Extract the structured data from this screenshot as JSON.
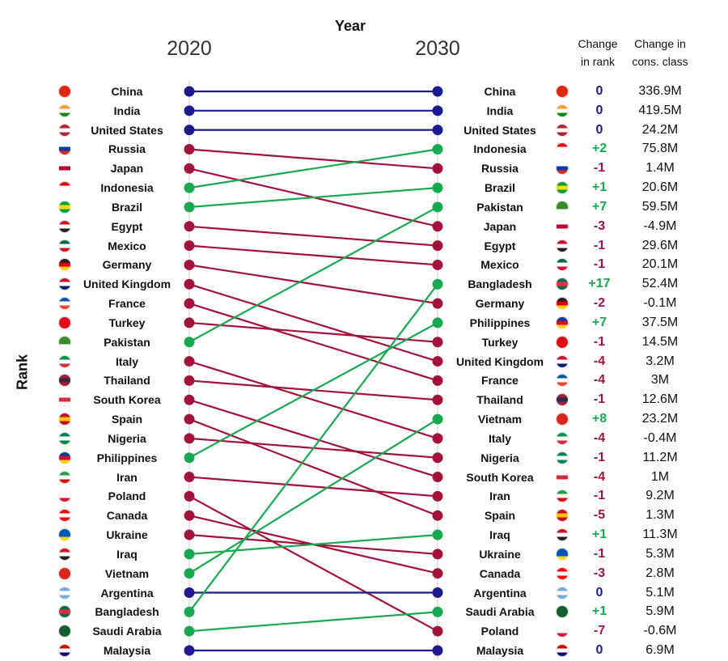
{
  "chart_data": {
    "type": "slope",
    "title": "Year",
    "ylabel": "Rank",
    "x_categories": [
      "2020",
      "2030"
    ],
    "column_headers": {
      "change_rank": [
        "Change",
        "in rank"
      ],
      "change_cons": [
        "Change in",
        "cons. class"
      ]
    },
    "colors": {
      "unchanged": "#1b1b8f",
      "down": "#a3123a",
      "up": "#18a84f",
      "axis": "#e6e6e6"
    },
    "rank_2020": [
      "China",
      "India",
      "United States",
      "Russia",
      "Japan",
      "Indonesia",
      "Brazil",
      "Egypt",
      "Mexico",
      "Germany",
      "United Kingdom",
      "France",
      "Turkey",
      "Pakistan",
      "Italy",
      "Thailand",
      "South Korea",
      "Spain",
      "Nigeria",
      "Philippines",
      "Iran",
      "Poland",
      "Canada",
      "Ukraine",
      "Iraq",
      "Vietnam",
      "Argentina",
      "Bangladesh",
      "Saudi Arabia",
      "Malaysia"
    ],
    "rank_2030": [
      {
        "country": "China",
        "change_rank": "0",
        "change_cons": "336.9M"
      },
      {
        "country": "India",
        "change_rank": "0",
        "change_cons": "419.5M"
      },
      {
        "country": "United States",
        "change_rank": "0",
        "change_cons": "24.2M"
      },
      {
        "country": "Indonesia",
        "change_rank": "+2",
        "change_cons": "75.8M"
      },
      {
        "country": "Russia",
        "change_rank": "-1",
        "change_cons": "1.4M"
      },
      {
        "country": "Brazil",
        "change_rank": "+1",
        "change_cons": "20.6M"
      },
      {
        "country": "Pakistan",
        "change_rank": "+7",
        "change_cons": "59.5M"
      },
      {
        "country": "Japan",
        "change_rank": "-3",
        "change_cons": "-4.9M"
      },
      {
        "country": "Egypt",
        "change_rank": "-1",
        "change_cons": "29.6M"
      },
      {
        "country": "Mexico",
        "change_rank": "-1",
        "change_cons": "20.1M"
      },
      {
        "country": "Bangladesh",
        "change_rank": "+17",
        "change_cons": "52.4M"
      },
      {
        "country": "Germany",
        "change_rank": "-2",
        "change_cons": "-0.1M"
      },
      {
        "country": "Philippines",
        "change_rank": "+7",
        "change_cons": "37.5M"
      },
      {
        "country": "Turkey",
        "change_rank": "-1",
        "change_cons": "14.5M"
      },
      {
        "country": "United Kingdom",
        "change_rank": "-4",
        "change_cons": "3.2M"
      },
      {
        "country": "France",
        "change_rank": "-4",
        "change_cons": "3M"
      },
      {
        "country": "Thailand",
        "change_rank": "-1",
        "change_cons": "12.6M"
      },
      {
        "country": "Vietnam",
        "change_rank": "+8",
        "change_cons": "23.2M"
      },
      {
        "country": "Italy",
        "change_rank": "-4",
        "change_cons": "-0.4M"
      },
      {
        "country": "Nigeria",
        "change_rank": "-1",
        "change_cons": "11.2M"
      },
      {
        "country": "South Korea",
        "change_rank": "-4",
        "change_cons": "1M"
      },
      {
        "country": "Iran",
        "change_rank": "-1",
        "change_cons": "9.2M"
      },
      {
        "country": "Spain",
        "change_rank": "-5",
        "change_cons": "1.3M"
      },
      {
        "country": "Iraq",
        "change_rank": "+1",
        "change_cons": "11.3M"
      },
      {
        "country": "Ukraine",
        "change_rank": "-1",
        "change_cons": "5.3M"
      },
      {
        "country": "Canada",
        "change_rank": "-3",
        "change_cons": "2.8M"
      },
      {
        "country": "Argentina",
        "change_rank": "0",
        "change_cons": "5.1M"
      },
      {
        "country": "Saudi Arabia",
        "change_rank": "+1",
        "change_cons": "5.9M"
      },
      {
        "country": "Poland",
        "change_rank": "-7",
        "change_cons": "-0.6M"
      },
      {
        "country": "Malaysia",
        "change_rank": "0",
        "change_cons": "6.9M"
      }
    ],
    "flag_colors": {
      "China": [
        "#de2910",
        "#de2910",
        "#de2910"
      ],
      "India": [
        "#ff9933",
        "#ffffff",
        "#138808"
      ],
      "United States": [
        "#b22234",
        "#ffffff",
        "#b22234"
      ],
      "Russia": [
        "#ffffff",
        "#0039a6",
        "#d52b1e"
      ],
      "Japan": [
        "#ffffff",
        "#bc002d",
        "#ffffff"
      ],
      "Indonesia": [
        "#e70011",
        "#ffffff",
        "#ffffff"
      ],
      "Brazil": [
        "#009c3b",
        "#ffdf00",
        "#009c3b"
      ],
      "Egypt": [
        "#ce1126",
        "#ffffff",
        "#222222"
      ],
      "Mexico": [
        "#006847",
        "#ffffff",
        "#ce1126"
      ],
      "Germany": [
        "#222222",
        "#dd0000",
        "#ffce00"
      ],
      "United Kingdom": [
        "#c8102e",
        "#ffffff",
        "#012169"
      ],
      "France": [
        "#0055a4",
        "#ffffff",
        "#ef4135"
      ],
      "Turkey": [
        "#e30a17",
        "#e30a17",
        "#e30a17"
      ],
      "Pakistan": [
        "#3a8a2a",
        "#3a8a2a",
        "#ffffff"
      ],
      "Italy": [
        "#009246",
        "#ffffff",
        "#ce2b37"
      ],
      "Thailand": [
        "#a51931",
        "#2d2a4a",
        "#a51931"
      ],
      "South Korea": [
        "#ffffff",
        "#cd2e3a",
        "#ffffff"
      ],
      "Spain": [
        "#c60b1e",
        "#ffc400",
        "#c60b1e"
      ],
      "Nigeria": [
        "#008751",
        "#ffffff",
        "#008751"
      ],
      "Philippines": [
        "#0038a8",
        "#ce1126",
        "#fcd116"
      ],
      "Iran": [
        "#239f40",
        "#ffffff",
        "#da0000"
      ],
      "Poland": [
        "#ffffff",
        "#ffffff",
        "#dc143c"
      ],
      "Canada": [
        "#ff0000",
        "#ffffff",
        "#ff0000"
      ],
      "Ukraine": [
        "#0057b7",
        "#0057b7",
        "#ffd700"
      ],
      "Iraq": [
        "#ce1126",
        "#ffffff",
        "#222222"
      ],
      "Vietnam": [
        "#da251d",
        "#da251d",
        "#da251d"
      ],
      "Argentina": [
        "#74acdf",
        "#ffffff",
        "#74acdf"
      ],
      "Bangladesh": [
        "#006a4e",
        "#f42a41",
        "#006a4e"
      ],
      "Saudi Arabia": [
        "#165d31",
        "#165d31",
        "#165d31"
      ],
      "Malaysia": [
        "#cc0001",
        "#ffffff",
        "#010066"
      ]
    }
  }
}
